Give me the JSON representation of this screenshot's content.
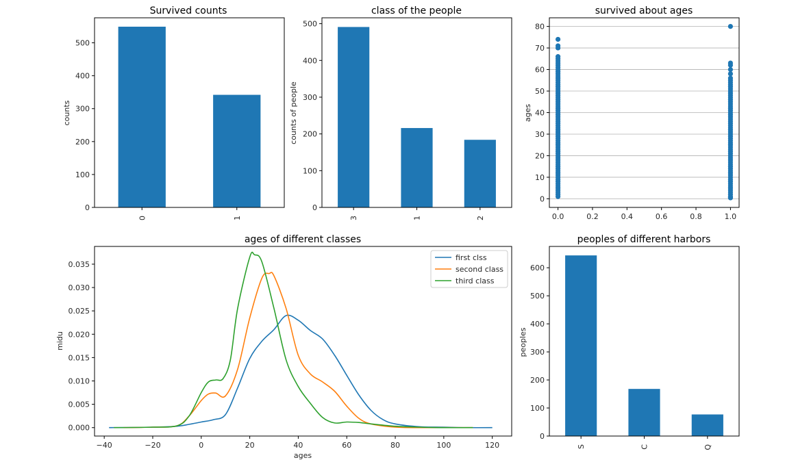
{
  "chart_data": [
    {
      "id": "survived",
      "type": "bar",
      "title": "Survived counts",
      "xlabel": "",
      "ylabel": "counts",
      "categories": [
        "0",
        "1"
      ],
      "values": [
        549,
        342
      ],
      "ylim": [
        0,
        576
      ],
      "yticks": [
        0,
        100,
        200,
        300,
        400,
        500
      ],
      "color": "#1f77b4"
    },
    {
      "id": "pclass",
      "type": "bar",
      "title": "class of the people",
      "xlabel": "",
      "ylabel": "counts of people",
      "categories": [
        "3",
        "1",
        "2"
      ],
      "values": [
        491,
        216,
        184
      ],
      "ylim": [
        0,
        516
      ],
      "yticks": [
        0,
        100,
        200,
        300,
        400,
        500
      ],
      "color": "#1f77b4"
    },
    {
      "id": "age_scatter",
      "type": "scatter",
      "title": "survived about ages",
      "xlabel": "",
      "ylabel": "ages",
      "xlim": [
        -0.05,
        1.05
      ],
      "ylim": [
        -4,
        84
      ],
      "xticks": [
        0.0,
        0.2,
        0.4,
        0.6,
        0.8,
        1.0
      ],
      "xtick_labels": [
        "0.0",
        "0.2",
        "0.4",
        "0.6",
        "0.8",
        "1.0"
      ],
      "yticks": [
        0,
        10,
        20,
        30,
        40,
        50,
        60,
        70,
        80
      ],
      "grid": "horizontal",
      "color": "#1f77b4",
      "series": [
        {
          "name": "0",
          "x": 0,
          "y": [
            1,
            2,
            3,
            4,
            5,
            6,
            7,
            8,
            9,
            10,
            11,
            12,
            13,
            14,
            15,
            16,
            17,
            18,
            19,
            20,
            21,
            22,
            23,
            24,
            25,
            26,
            27,
            28,
            29,
            30,
            31,
            32,
            33,
            34,
            35,
            36,
            37,
            38,
            39,
            40,
            41,
            42,
            43,
            44,
            45,
            46,
            47,
            48,
            49,
            50,
            51,
            52,
            53,
            54,
            55,
            56,
            57,
            58,
            59,
            60,
            61,
            62,
            63,
            64,
            65,
            66,
            70,
            71,
            74
          ]
        },
        {
          "name": "1",
          "x": 1,
          "y": [
            0.42,
            0.67,
            1,
            2,
            3,
            4,
            5,
            6,
            7,
            8,
            9,
            10,
            11,
            12,
            13,
            14,
            15,
            16,
            17,
            18,
            19,
            20,
            21,
            22,
            23,
            24,
            25,
            26,
            27,
            28,
            29,
            30,
            31,
            32,
            33,
            34,
            35,
            36,
            37,
            38,
            39,
            40,
            41,
            42,
            43,
            44,
            45,
            46,
            47,
            48,
            49,
            50,
            51,
            52,
            53,
            54,
            55,
            56,
            58,
            60,
            62,
            63,
            80
          ]
        }
      ]
    },
    {
      "id": "age_kde",
      "type": "line",
      "title": "ages of different classes",
      "xlabel": "ages",
      "ylabel": "midu",
      "xlim": [
        -44,
        128
      ],
      "ylim": [
        -0.0018,
        0.0388
      ],
      "xticks": [
        -40,
        -20,
        0,
        20,
        40,
        60,
        80,
        100,
        120
      ],
      "yticks": [
        0.0,
        0.005,
        0.01,
        0.015,
        0.02,
        0.025,
        0.03,
        0.035
      ],
      "ytick_labels": [
        "0.000",
        "0.005",
        "0.010",
        "0.015",
        "0.020",
        "0.025",
        "0.030",
        "0.035"
      ],
      "legend": "top-right",
      "series": [
        {
          "name": "first clss",
          "color": "#1f77b4",
          "x": [
            -38,
            -20,
            -10,
            -5,
            0,
            5,
            10,
            15,
            20,
            25,
            30,
            35,
            40,
            45,
            50,
            55,
            60,
            65,
            70,
            75,
            80,
            90,
            100,
            110,
            120
          ],
          "y": [
            0,
            0.0001,
            0.0003,
            0.0007,
            0.0012,
            0.0017,
            0.0028,
            0.0085,
            0.0148,
            0.0185,
            0.021,
            0.024,
            0.023,
            0.0208,
            0.019,
            0.0155,
            0.0112,
            0.007,
            0.0037,
            0.0017,
            0.0008,
            0.0002,
            0.0001,
            0,
            0
          ]
        },
        {
          "name": "second class",
          "color": "#ff7f0e",
          "x": [
            -32,
            -20,
            -10,
            -5,
            0,
            3,
            6,
            10,
            15,
            20,
            25,
            28,
            30,
            35,
            40,
            45,
            50,
            55,
            60,
            65,
            70,
            80,
            90,
            100,
            112
          ],
          "y": [
            0,
            0.0001,
            0.0004,
            0.0025,
            0.0058,
            0.0072,
            0.0074,
            0.0068,
            0.0125,
            0.0235,
            0.032,
            0.033,
            0.0325,
            0.0255,
            0.0155,
            0.0115,
            0.0098,
            0.0078,
            0.0046,
            0.002,
            0.0008,
            0.0001,
            0,
            0,
            0
          ]
        },
        {
          "name": "third class",
          "color": "#2ca02c",
          "x": [
            -36,
            -20,
            -10,
            -5,
            0,
            3,
            6,
            9,
            12,
            15,
            20,
            22,
            25,
            30,
            35,
            40,
            45,
            50,
            55,
            60,
            65,
            70,
            80,
            90,
            100,
            112
          ],
          "y": [
            0,
            0.0001,
            0.0004,
            0.0025,
            0.0075,
            0.0098,
            0.0102,
            0.0105,
            0.0145,
            0.0255,
            0.0365,
            0.037,
            0.0355,
            0.0255,
            0.0145,
            0.0088,
            0.0052,
            0.0022,
            0.001,
            0.0012,
            0.0011,
            0.0008,
            0.0003,
            0.0001,
            0,
            0
          ]
        }
      ]
    },
    {
      "id": "embarked",
      "type": "bar",
      "title": "peoples of different harbors",
      "xlabel": "",
      "ylabel": "peoples",
      "categories": [
        "S",
        "C",
        "Q"
      ],
      "values": [
        644,
        168,
        77
      ],
      "ylim": [
        0,
        676
      ],
      "yticks": [
        0,
        100,
        200,
        300,
        400,
        500,
        600
      ],
      "color": "#1f77b4"
    }
  ]
}
